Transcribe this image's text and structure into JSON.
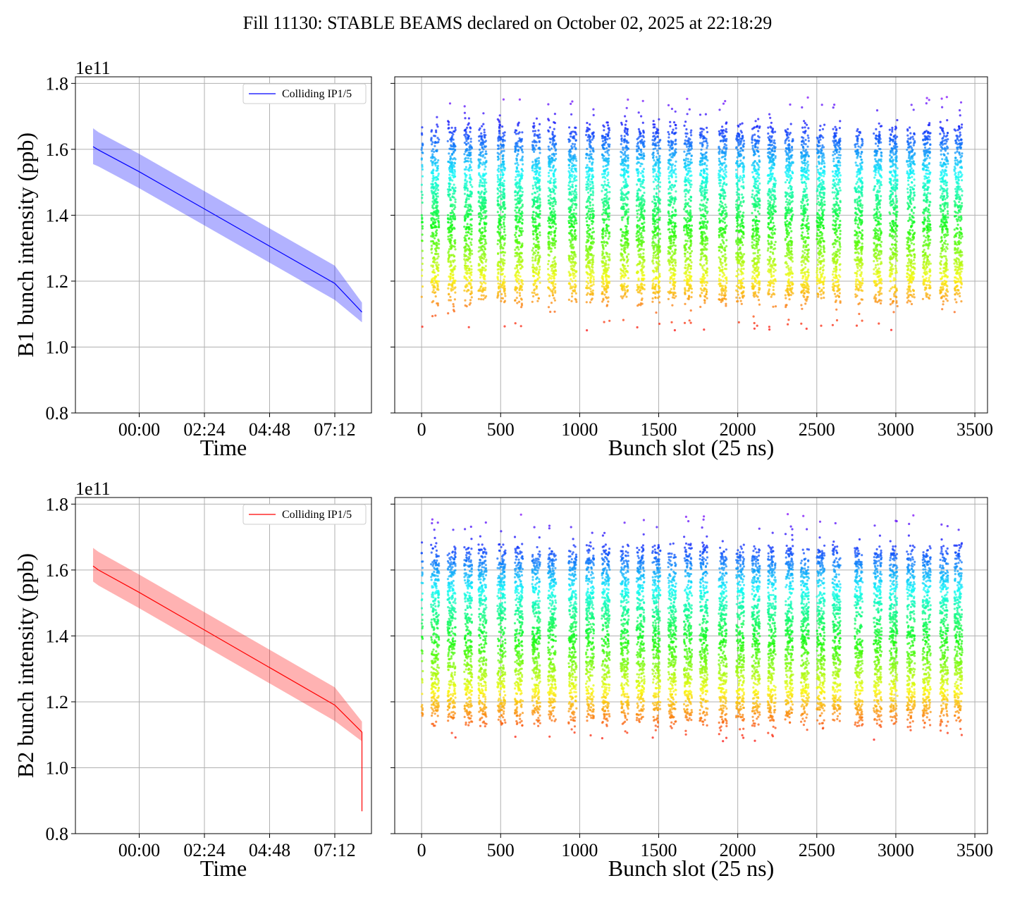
{
  "figure": {
    "title": "Fill 11130: STABLE BEAMS declared on October 02, 2025 at 22:18:29"
  },
  "chart_data": [
    {
      "id": "b1-time",
      "type": "line",
      "title": "",
      "xlabel": "Time",
      "ylabel": "B1 bunch intensity (ppb)",
      "y_multiplier": "1e11",
      "x_ticks": [
        "00:00",
        "02:24",
        "04:48",
        "07:12"
      ],
      "x_range_hours": [
        -2.35,
        8.55
      ],
      "y_ticks": [
        "0.8",
        "1.0",
        "1.2",
        "1.4",
        "1.6",
        "1.8"
      ],
      "ylim": [
        0.8,
        1.82
      ],
      "grid": true,
      "legend": {
        "position": "top-right",
        "entries": [
          "Colliding IP1/5"
        ]
      },
      "color": "#0000ff",
      "band_color": "#0000ff",
      "series": [
        {
          "name": "Colliding IP1/5",
          "x_hours": [
            -1.7,
            -1.5,
            0.0,
            2.4,
            4.8,
            7.2,
            8.2
          ],
          "mean": [
            1.608,
            1.598,
            1.532,
            1.419,
            1.306,
            1.193,
            1.106
          ],
          "band_low": [
            1.555,
            1.548,
            1.482,
            1.369,
            1.256,
            1.143,
            1.075
          ],
          "band_high": [
            1.664,
            1.652,
            1.586,
            1.473,
            1.36,
            1.247,
            1.135
          ]
        }
      ]
    },
    {
      "id": "b1-slot",
      "type": "scatter",
      "title": "",
      "xlabel": "Bunch slot (25 ns)",
      "ylabel": "",
      "y_multiplier": "",
      "x_ticks": [
        "0",
        "500",
        "1000",
        "1500",
        "2000",
        "2500",
        "3000",
        "3500"
      ],
      "xlim": [
        -170,
        3580
      ],
      "ylim": [
        0.8,
        1.82
      ],
      "grid": true,
      "colormap": "rainbow",
      "train_slots": [
        0,
        60,
        165,
        270,
        360,
        480,
        590,
        700,
        800,
        930,
        1040,
        1140,
        1260,
        1360,
        1460,
        1560,
        1660,
        1760,
        1880,
        1990,
        2090,
        2190,
        2300,
        2400,
        2500,
        2600,
        2740,
        2860,
        2960,
        3070,
        3170,
        3280,
        3370
      ],
      "train_width_slots": 50,
      "intensity_range": [
        1.15,
        1.66
      ],
      "spread_range": [
        1.05,
        1.76
      ]
    },
    {
      "id": "b2-time",
      "type": "line",
      "title": "",
      "xlabel": "Time",
      "ylabel": "B2 bunch intensity (ppb)",
      "y_multiplier": "1e11",
      "x_ticks": [
        "00:00",
        "02:24",
        "04:48",
        "07:12"
      ],
      "x_range_hours": [
        -2.35,
        8.55
      ],
      "y_ticks": [
        "0.8",
        "1.0",
        "1.2",
        "1.4",
        "1.6",
        "1.8"
      ],
      "ylim": [
        0.8,
        1.82
      ],
      "grid": true,
      "legend": {
        "position": "top-right",
        "entries": [
          "Colliding IP1/5"
        ]
      },
      "color": "#ff0000",
      "band_color": "#ff0000",
      "series": [
        {
          "name": "Colliding IP1/5",
          "x_hours": [
            -1.7,
            -1.5,
            0.0,
            2.4,
            4.8,
            7.2,
            8.2,
            8.2,
            8.2
          ],
          "mean": [
            1.612,
            1.6,
            1.532,
            1.418,
            1.304,
            1.19,
            1.108,
            1.1,
            0.868
          ],
          "band_low": [
            1.565,
            1.553,
            1.484,
            1.37,
            1.256,
            1.142,
            1.08,
            0.85,
            0.845
          ],
          "band_high": [
            1.667,
            1.655,
            1.586,
            1.472,
            1.358,
            1.244,
            1.14,
            1.14,
            0.88
          ]
        }
      ]
    },
    {
      "id": "b2-slot",
      "type": "scatter",
      "title": "",
      "xlabel": "Bunch slot (25 ns)",
      "ylabel": "",
      "y_multiplier": "",
      "x_ticks": [
        "0",
        "500",
        "1000",
        "1500",
        "2000",
        "2500",
        "3000",
        "3500"
      ],
      "xlim": [
        -170,
        3580
      ],
      "ylim": [
        0.8,
        1.82
      ],
      "grid": true,
      "colormap": "rainbow",
      "train_slots": [
        0,
        60,
        165,
        270,
        360,
        480,
        590,
        700,
        800,
        930,
        1040,
        1140,
        1260,
        1360,
        1460,
        1560,
        1660,
        1760,
        1880,
        1990,
        2090,
        2190,
        2300,
        2400,
        2500,
        2600,
        2740,
        2860,
        2960,
        3070,
        3170,
        3280,
        3370
      ],
      "train_width_slots": 50,
      "intensity_range": [
        1.15,
        1.66
      ],
      "spread_range": [
        1.08,
        1.77
      ]
    }
  ]
}
